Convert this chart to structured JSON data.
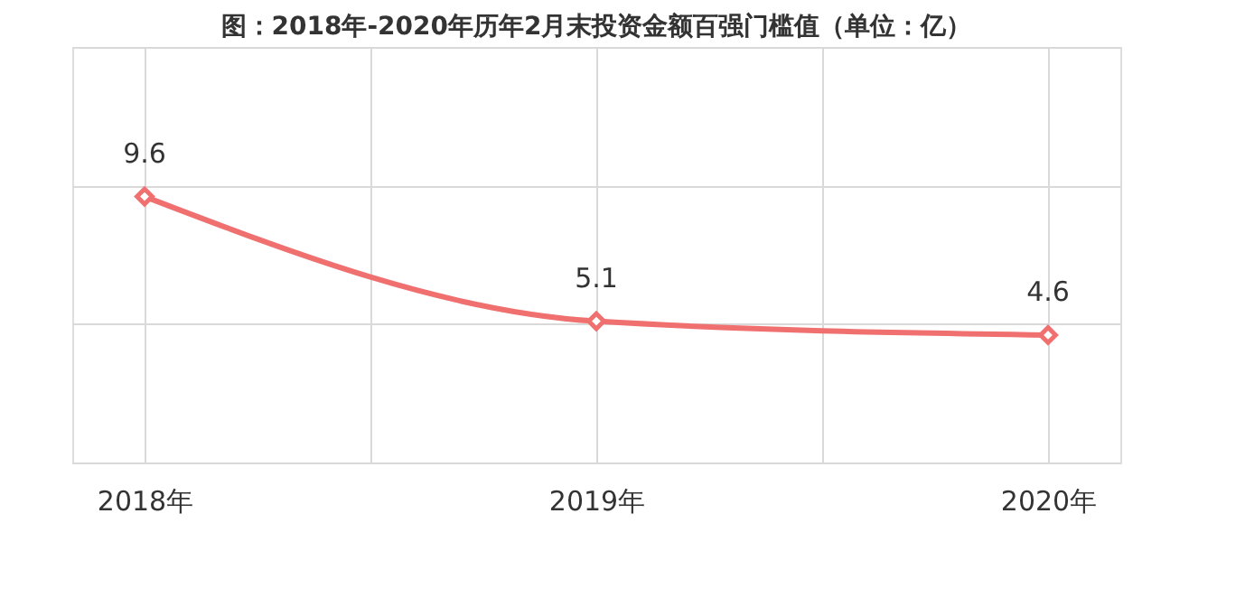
{
  "chart_data": {
    "type": "line",
    "title": "图：2018年-2020年历年2月末投资金额百强门槛值（单位：亿）",
    "x": [
      2018,
      2019,
      2020
    ],
    "series": [
      {
        "color": "#f07070",
        "values": [
          9.6,
          5.1,
          4.6
        ]
      }
    ],
    "xlim": [
      2018,
      2020
    ],
    "xticks": [
      {
        "value": 2018,
        "label": "2018年"
      },
      {
        "value": 2018.5,
        "label": null
      },
      {
        "value": 2019,
        "label": "2019年"
      },
      {
        "value": 2019.5,
        "label": null
      },
      {
        "value": 2020,
        "label": "2020年"
      }
    ],
    "ylim": [
      0,
      15
    ],
    "yticks": [
      {
        "value": 0,
        "label": null
      },
      {
        "value": 5,
        "label": null
      },
      {
        "value": 10,
        "label": null
      },
      {
        "value": 15,
        "label": null
      }
    ],
    "tick_labels": "x",
    "grid": true,
    "marker": "diamond",
    "line_style": "solid",
    "data_labels": true
  }
}
